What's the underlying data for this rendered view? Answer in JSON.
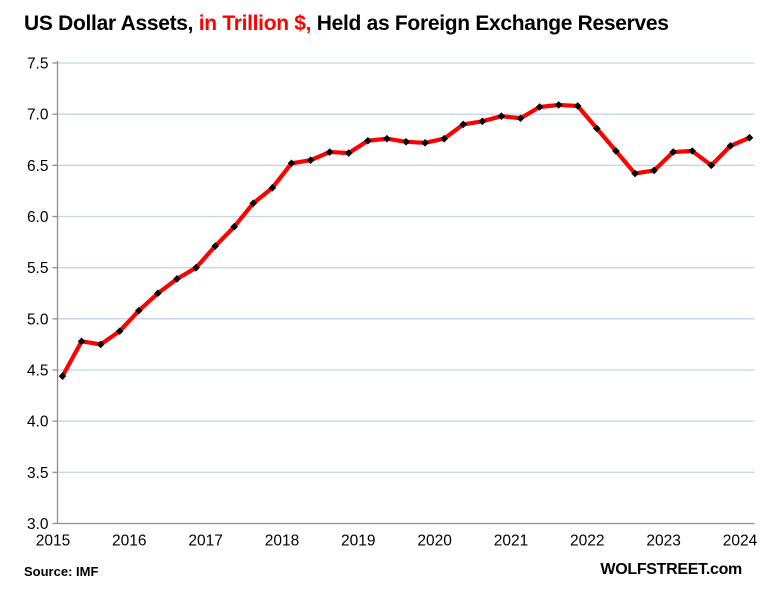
{
  "title": {
    "part1": "US Dollar Assets, ",
    "part2": "in Trillion $,",
    "part3": " Held as Foreign Exchange Reserves"
  },
  "footer": {
    "source": "Source: IMF",
    "site": "WOLFSTREET.com"
  },
  "chart_data": {
    "type": "line",
    "title": "US Dollar Assets, in Trillion $, Held as Foreign Exchange Reserves",
    "series_name": "US dollar assets held as foreign exchange reserves (trillion $)",
    "frequency": "quarterly",
    "x": [
      "2015Q1",
      "2015Q2",
      "2015Q3",
      "2015Q4",
      "2016Q1",
      "2016Q2",
      "2016Q3",
      "2016Q4",
      "2017Q1",
      "2017Q2",
      "2017Q3",
      "2017Q4",
      "2018Q1",
      "2018Q2",
      "2018Q3",
      "2018Q4",
      "2019Q1",
      "2019Q2",
      "2019Q3",
      "2019Q4",
      "2020Q1",
      "2020Q2",
      "2020Q3",
      "2020Q4",
      "2021Q1",
      "2021Q2",
      "2021Q3",
      "2021Q4",
      "2022Q1",
      "2022Q2",
      "2022Q3",
      "2022Q4",
      "2023Q1",
      "2023Q2",
      "2023Q3",
      "2023Q4",
      "2024Q1"
    ],
    "values": [
      4.44,
      4.78,
      4.75,
      4.88,
      5.08,
      5.25,
      5.39,
      5.5,
      5.71,
      5.9,
      6.13,
      6.28,
      6.52,
      6.55,
      6.63,
      6.62,
      6.74,
      6.76,
      6.73,
      6.72,
      6.76,
      6.9,
      6.93,
      6.98,
      6.96,
      7.07,
      7.09,
      7.08,
      6.86,
      6.64,
      6.42,
      6.45,
      6.63,
      6.64,
      6.5,
      6.69,
      6.77
    ],
    "x_tick_labels": [
      "2015",
      "2016",
      "2017",
      "2018",
      "2019",
      "2020",
      "2021",
      "2022",
      "2023",
      "2024"
    ],
    "y_ticks": [
      3.0,
      3.5,
      4.0,
      4.5,
      5.0,
      5.5,
      6.0,
      6.5,
      7.0,
      7.5
    ],
    "ylim": [
      3.0,
      7.5
    ],
    "grid": true,
    "legend": false,
    "line_color": "#ff0000",
    "marker": "diamond",
    "marker_color": "#000000",
    "gridline_color": "#c5d5ea",
    "axis_color": "#8f8f8f",
    "tick_label_color": "#000000"
  }
}
